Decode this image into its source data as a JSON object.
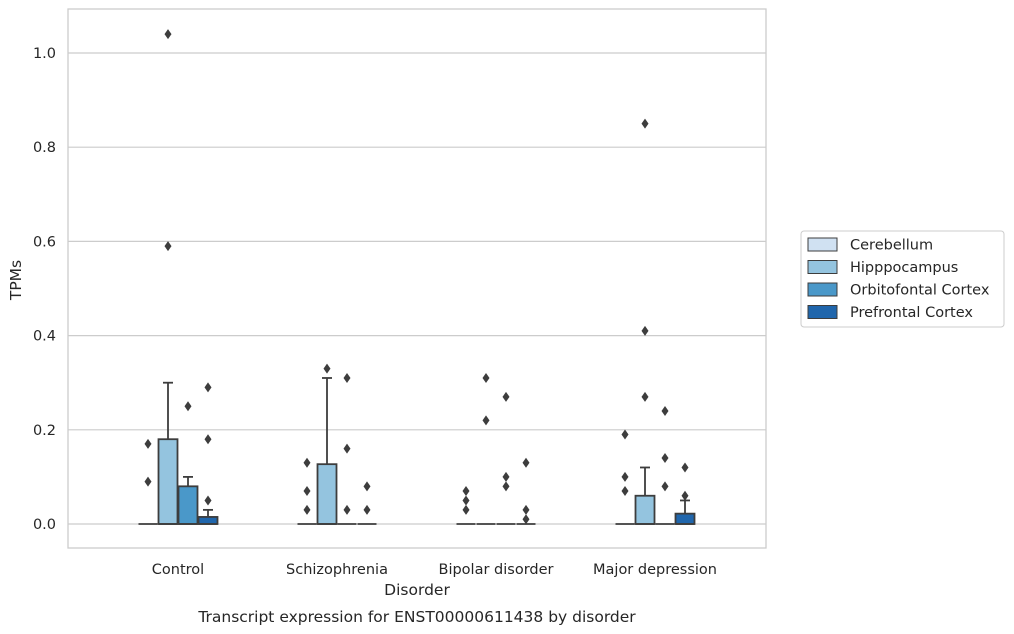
{
  "chart_data": {
    "type": "box",
    "xlabel": "Disorder",
    "ylabel": "TPMs",
    "caption": "Transcript expression for ENST00000611438 by disorder",
    "ylim": [
      -0.05,
      1.09
    ],
    "yticks": [
      0.0,
      0.2,
      0.4,
      0.6,
      0.8,
      1.0
    ],
    "ytick_labels": [
      "0.0",
      "0.2",
      "0.4",
      "0.6",
      "0.8",
      "1.0"
    ],
    "grid": "horizontal",
    "legend_placement": "right",
    "categories": [
      "Control",
      "Schizophrenia",
      "Bipolar disorder",
      "Major depression"
    ],
    "series": [
      {
        "name": "Cerebellum",
        "color": "#d0e1f2",
        "boxes": [
          {
            "q1": 0,
            "median": 0,
            "q3": 0,
            "whislo": 0,
            "whishi": 0,
            "fliers": [
              0.09,
              0.17
            ]
          },
          {
            "q1": 0,
            "median": 0,
            "q3": 0,
            "whislo": 0,
            "whishi": 0,
            "fliers": [
              0.03,
              0.07,
              0.13
            ]
          },
          {
            "q1": 0,
            "median": 0,
            "q3": 0,
            "whislo": 0,
            "whishi": 0,
            "fliers": [
              0.03,
              0.05,
              0.07
            ]
          },
          {
            "q1": 0,
            "median": 0,
            "q3": 0,
            "whislo": 0,
            "whishi": 0,
            "fliers": [
              0.07,
              0.1,
              0.19
            ]
          }
        ]
      },
      {
        "name": "Hipppocampus",
        "color": "#94c4df",
        "boxes": [
          {
            "q1": 0,
            "median": 0,
            "q3": 0.18,
            "whislo": 0,
            "whishi": 0.3,
            "fliers": [
              0.59,
              1.04
            ]
          },
          {
            "q1": 0,
            "median": 0,
            "q3": 0.127,
            "whislo": 0,
            "whishi": 0.31,
            "fliers": [
              0.33
            ]
          },
          {
            "q1": 0,
            "median": 0,
            "q3": 0,
            "whislo": 0,
            "whishi": 0,
            "fliers": [
              0.22,
              0.31
            ]
          },
          {
            "q1": 0,
            "median": 0,
            "q3": 0.06,
            "whislo": 0,
            "whishi": 0.12,
            "fliers": [
              0.27,
              0.41,
              0.85
            ]
          }
        ]
      },
      {
        "name": "Orbitofontal Cortex",
        "color": "#4a98c9",
        "boxes": [
          {
            "q1": 0,
            "median": 0,
            "q3": 0.08,
            "whislo": 0,
            "whishi": 0.1,
            "fliers": [
              0.25
            ]
          },
          {
            "q1": 0,
            "median": 0,
            "q3": 0,
            "whislo": 0,
            "whishi": 0,
            "fliers": [
              0.03,
              0.16,
              0.31
            ]
          },
          {
            "q1": 0,
            "median": 0,
            "q3": 0,
            "whislo": 0,
            "whishi": 0,
            "fliers": [
              0.08,
              0.1,
              0.27
            ]
          },
          {
            "q1": 0,
            "median": 0,
            "q3": 0,
            "whislo": 0,
            "whishi": 0,
            "fliers": [
              0.08,
              0.14,
              0.24
            ]
          }
        ]
      },
      {
        "name": "Prefrontal Cortex",
        "color": "#2066ac",
        "boxes": [
          {
            "q1": 0,
            "median": 0,
            "q3": 0.015,
            "whislo": 0,
            "whishi": 0.03,
            "fliers": [
              0.05,
              0.18,
              0.29
            ]
          },
          {
            "q1": 0,
            "median": 0,
            "q3": 0,
            "whislo": 0,
            "whishi": 0,
            "fliers": [
              0.03,
              0.08
            ]
          },
          {
            "q1": 0,
            "median": 0,
            "q3": 0,
            "whislo": 0,
            "whishi": 0,
            "fliers": [
              0.01,
              0.03,
              0.13
            ]
          },
          {
            "q1": 0,
            "median": 0,
            "q3": 0.022,
            "whislo": 0,
            "whishi": 0.05,
            "fliers": [
              0.06,
              0.12
            ]
          }
        ]
      }
    ]
  }
}
